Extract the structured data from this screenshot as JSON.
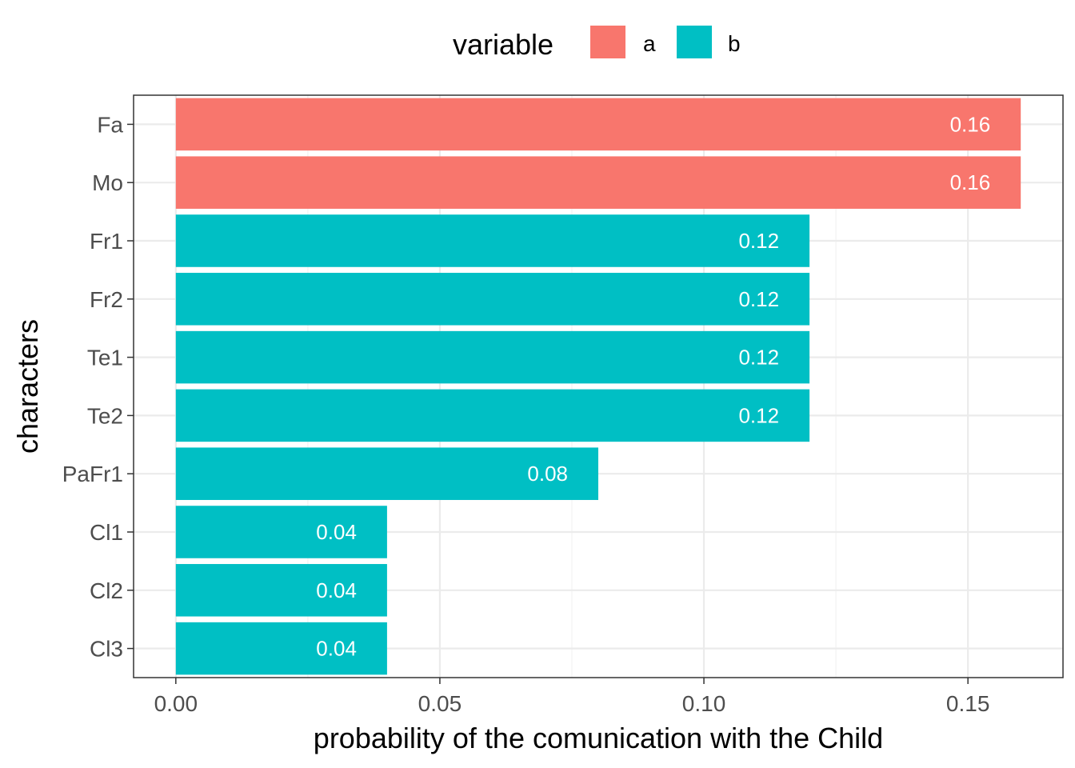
{
  "chart_data": {
    "type": "bar",
    "orientation": "horizontal",
    "title": "",
    "xlabel": "probability of the comunication with the Child",
    "ylabel": "characters",
    "xlim": [
      -0.008,
      0.168
    ],
    "x_ticks": [
      0.0,
      0.05,
      0.1,
      0.15
    ],
    "x_tick_labels": [
      "0.00",
      "0.05",
      "0.10",
      "0.15"
    ],
    "grid": true,
    "legend": {
      "title": "variable",
      "position": "top",
      "entries": [
        {
          "label": "a",
          "color": "#F8766D"
        },
        {
          "label": "b",
          "color": "#00BFC4"
        }
      ]
    },
    "categories": [
      "Fa",
      "Mo",
      "Fr1",
      "Fr2",
      "Te1",
      "Te2",
      "PaFr1",
      "Cl1",
      "Cl2",
      "Cl3"
    ],
    "values": [
      0.16,
      0.16,
      0.12,
      0.12,
      0.12,
      0.12,
      0.08,
      0.04,
      0.04,
      0.04
    ],
    "groups": [
      "a",
      "a",
      "b",
      "b",
      "b",
      "b",
      "b",
      "b",
      "b",
      "b"
    ],
    "data_labels": [
      "0.16",
      "0.16",
      "0.12",
      "0.12",
      "0.12",
      "0.12",
      "0.08",
      "0.04",
      "0.04",
      "0.04"
    ]
  }
}
